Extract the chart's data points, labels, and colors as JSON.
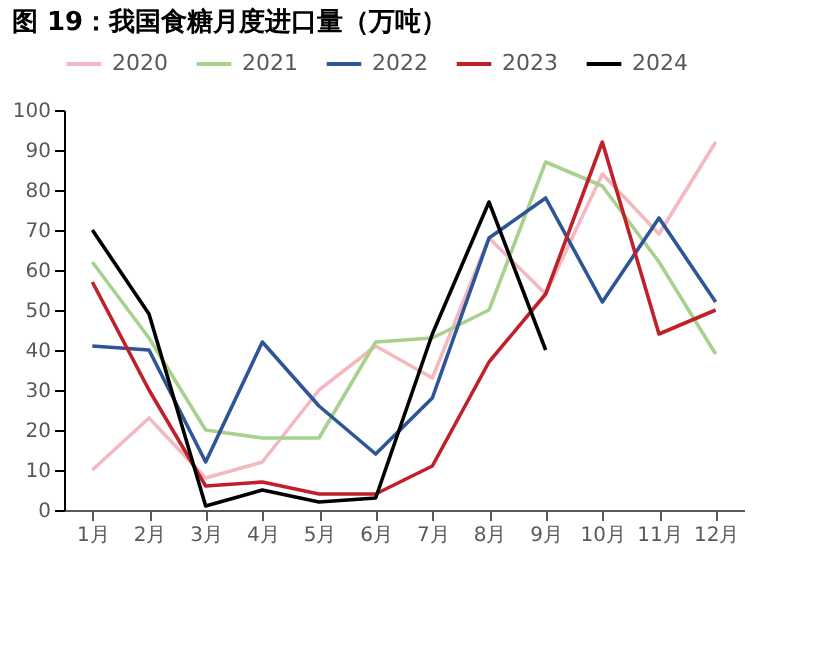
{
  "chart_data": {
    "type": "line",
    "title": "图 19：我国食糖月度进口量（万吨）",
    "categories": [
      "1月",
      "2月",
      "3月",
      "4月",
      "5月",
      "6月",
      "7月",
      "8月",
      "9月",
      "10月",
      "11月",
      "12月"
    ],
    "series": [
      {
        "name": "2020",
        "color": "#f4b8c0",
        "values": [
          10,
          23,
          8,
          12,
          30,
          41,
          33,
          68,
          54,
          84,
          69,
          92
        ]
      },
      {
        "name": "2021",
        "color": "#a9d18e",
        "values": [
          62,
          43,
          20,
          18,
          18,
          42,
          43,
          50,
          87,
          81,
          62,
          39
        ]
      },
      {
        "name": "2022",
        "color": "#2e5597",
        "values": [
          41,
          40,
          12,
          42,
          26,
          14,
          28,
          68,
          78,
          52,
          73,
          52
        ]
      },
      {
        "name": "2023",
        "color": "#c0202a",
        "values": [
          57,
          30,
          6,
          7,
          4,
          4,
          11,
          37,
          54,
          92,
          44,
          50
        ]
      },
      {
        "name": "2024",
        "color": "#000000",
        "values": [
          70,
          49,
          1,
          5,
          2,
          3,
          44,
          77,
          40,
          null,
          null,
          null
        ]
      }
    ],
    "ylim": [
      0,
      100
    ],
    "yticks": [
      0,
      10,
      20,
      30,
      40,
      50,
      60,
      70,
      80,
      90,
      100
    ],
    "grid": false,
    "legend": "top",
    "marker": "none",
    "line_style": "solid"
  }
}
